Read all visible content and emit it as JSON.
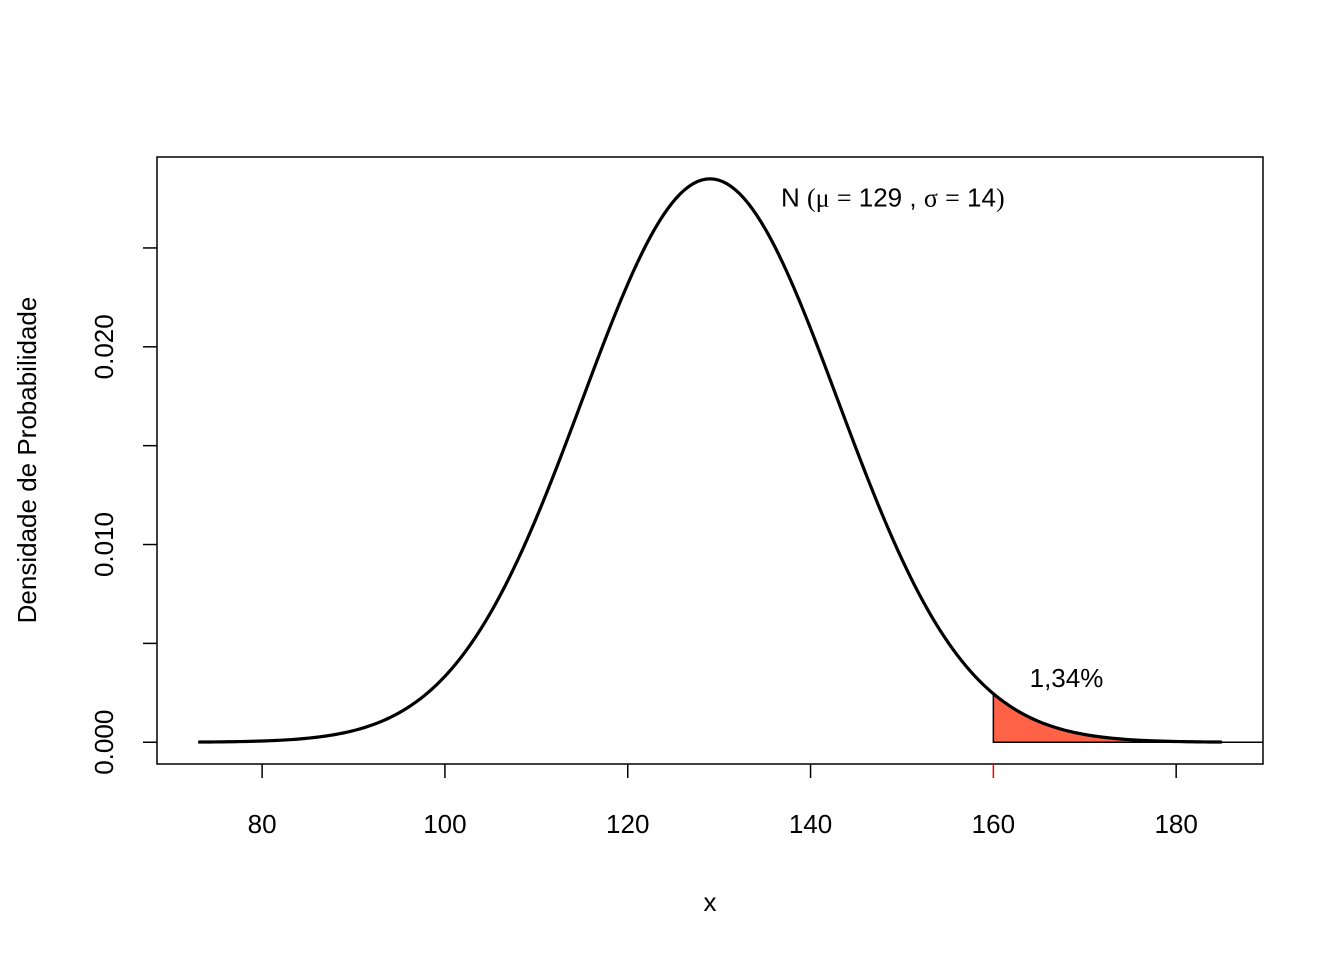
{
  "chart_data": {
    "type": "area",
    "distribution": "normal",
    "mean": 129,
    "sd": 14,
    "x_range": [
      73,
      185
    ],
    "xlim": [
      68.5,
      189.5
    ],
    "ylim": [
      -0.0011,
      0.0296
    ],
    "xlabel": "x",
    "ylabel": "Densidade de Probabilidade",
    "x_ticks": [
      "80",
      "100",
      "120",
      "140",
      "160",
      "180"
    ],
    "y_ticks": [
      0,
      0.005,
      0.01,
      0.015,
      0.02,
      0.025
    ],
    "y_tick_labels": [
      "0.000",
      "",
      "0.010",
      "",
      "0.020",
      ""
    ],
    "highlight_tick": "160",
    "highlight_tick_color": "#ff0000",
    "shaded_region": {
      "from": 160,
      "to": 185,
      "color": "#ff6347",
      "label": "1,34%",
      "label_x": 168,
      "label_y": 0.0028
    },
    "annotation": {
      "prefix": "N",
      "mu_symbol": "μ",
      "mu_value": "129",
      "sigma_symbol": "σ",
      "sigma_value": "14",
      "x": 149,
      "y": 0.0271
    },
    "grid": false,
    "legend": "none"
  }
}
